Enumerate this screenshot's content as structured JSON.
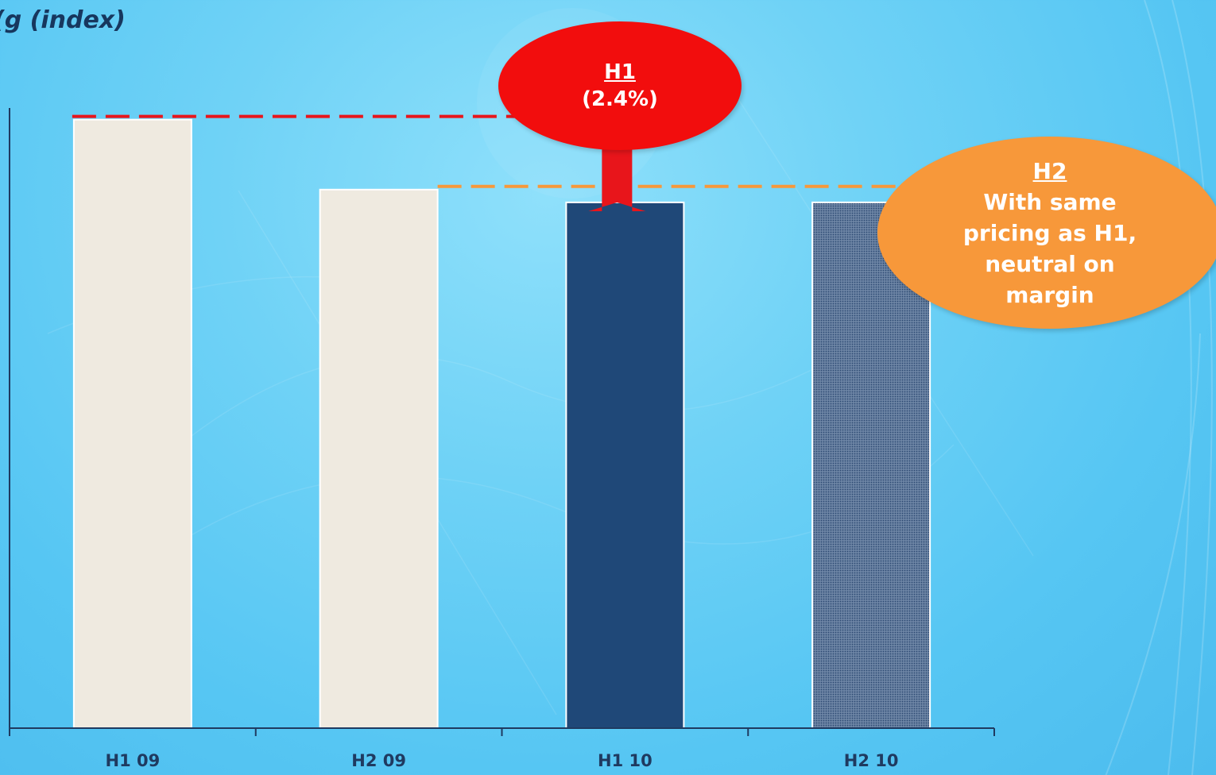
{
  "title": "(g (index)",
  "chart_data": {
    "type": "bar",
    "categories": [
      "H1 09",
      "H2 09",
      "H1 10",
      "H2 10"
    ],
    "values": [
      100,
      88.5,
      86.4,
      86.4
    ],
    "ylim": [
      0,
      104
    ],
    "grid": false,
    "bar_colors": [
      "#efeae0",
      "#efeae0",
      "#1f4878",
      "#4a6384"
    ],
    "bar_styles": [
      "solid",
      "solid",
      "solid",
      "dotted"
    ],
    "reference_lines": [
      {
        "from_category": "H1 09",
        "to_category": "H1 10",
        "value": 100,
        "color": "#e8151b",
        "style": "dashed"
      },
      {
        "from_category": "H2 09",
        "to_category": "H2 10",
        "value": 88.5,
        "color": "#f7983a",
        "style": "dashed"
      }
    ]
  },
  "callouts": {
    "h1": {
      "heading": "H1",
      "text": "(2.4%)",
      "color": "#f20d0d"
    },
    "h2": {
      "heading": "H2",
      "lines": [
        "With same",
        "pricing as H1,",
        "neutral on",
        "margin"
      ],
      "color": "#f7983a"
    }
  },
  "arrow_color": "#e8151b"
}
